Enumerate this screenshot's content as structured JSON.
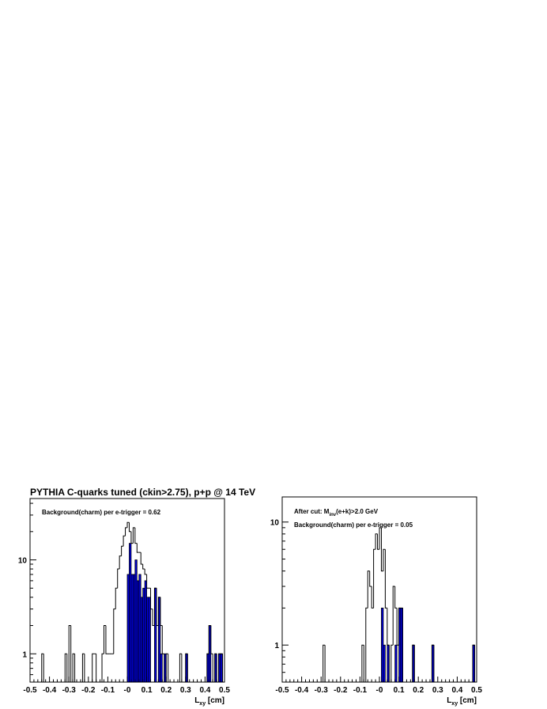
{
  "title": "PYTHIA C-quarks tuned (ckin>2.75), p+p @ 14 TeV",
  "colors": {
    "signal_fill": "#0000e0",
    "outline": "#000000"
  },
  "chart_data": [
    {
      "type": "bar",
      "scale": "log",
      "xlim": [
        -0.5,
        0.5
      ],
      "ylim": [
        0.5,
        45
      ],
      "xlabel": "L",
      "xlabel_sub": "xy",
      "xlabel_unit": " [cm]",
      "x_ticks": [
        "-0.5",
        "-0.4",
        "-0.3",
        "-0.2",
        "-0.1",
        "-0",
        "0.1",
        "0.2",
        "0.3",
        "0.4",
        "0.5"
      ],
      "y_ticks": [
        {
          "value": 1,
          "label": "1"
        },
        {
          "value": 10,
          "label": "10"
        }
      ],
      "annotation": "Background(charm) per e-trigger = 0.62",
      "bin_width": 0.01,
      "series": [
        {
          "role": "all-pairs-outline",
          "bins": [
            {
              "x": -0.44,
              "y": 1
            },
            {
              "x": -0.32,
              "y": 1
            },
            {
              "x": -0.3,
              "y": 2
            },
            {
              "x": -0.28,
              "y": 1
            },
            {
              "x": -0.23,
              "y": 1
            },
            {
              "x": -0.18,
              "y": 1
            },
            {
              "x": -0.17,
              "y": 1
            },
            {
              "x": -0.13,
              "y": 1
            },
            {
              "x": -0.12,
              "y": 2
            },
            {
              "x": -0.11,
              "y": 1
            },
            {
              "x": -0.1,
              "y": 1
            },
            {
              "x": -0.09,
              "y": 1
            },
            {
              "x": -0.08,
              "y": 1
            },
            {
              "x": -0.07,
              "y": 3
            },
            {
              "x": -0.06,
              "y": 5
            },
            {
              "x": -0.05,
              "y": 8
            },
            {
              "x": -0.04,
              "y": 11
            },
            {
              "x": -0.03,
              "y": 14
            },
            {
              "x": -0.02,
              "y": 18
            },
            {
              "x": -0.01,
              "y": 22
            },
            {
              "x": 0.0,
              "y": 25
            },
            {
              "x": 0.01,
              "y": 20
            },
            {
              "x": 0.02,
              "y": 15
            },
            {
              "x": 0.03,
              "y": 22
            },
            {
              "x": 0.04,
              "y": 15
            },
            {
              "x": 0.05,
              "y": 12
            },
            {
              "x": 0.06,
              "y": 12
            },
            {
              "x": 0.07,
              "y": 9
            },
            {
              "x": 0.08,
              "y": 8
            },
            {
              "x": 0.09,
              "y": 7
            },
            {
              "x": 0.1,
              "y": 5
            },
            {
              "x": 0.11,
              "y": 5
            },
            {
              "x": 0.12,
              "y": 3
            },
            {
              "x": 0.13,
              "y": 2
            },
            {
              "x": 0.14,
              "y": 5
            },
            {
              "x": 0.15,
              "y": 2
            },
            {
              "x": 0.16,
              "y": 4
            },
            {
              "x": 0.17,
              "y": 2
            },
            {
              "x": 0.18,
              "y": 1
            },
            {
              "x": 0.2,
              "y": 1
            },
            {
              "x": 0.27,
              "y": 1
            },
            {
              "x": 0.3,
              "y": 1
            },
            {
              "x": 0.41,
              "y": 1
            },
            {
              "x": 0.42,
              "y": 2
            },
            {
              "x": 0.43,
              "y": 1
            },
            {
              "x": 0.45,
              "y": 1
            },
            {
              "x": 0.47,
              "y": 1
            },
            {
              "x": 0.48,
              "y": 1
            }
          ]
        },
        {
          "role": "charm-filled",
          "bins": [
            {
              "x": 0.0,
              "y": 7
            },
            {
              "x": 0.01,
              "y": 15
            },
            {
              "x": 0.02,
              "y": 7
            },
            {
              "x": 0.03,
              "y": 7
            },
            {
              "x": 0.04,
              "y": 10
            },
            {
              "x": 0.05,
              "y": 6
            },
            {
              "x": 0.06,
              "y": 7
            },
            {
              "x": 0.07,
              "y": 4
            },
            {
              "x": 0.08,
              "y": 5
            },
            {
              "x": 0.09,
              "y": 6
            },
            {
              "x": 0.1,
              "y": 4
            },
            {
              "x": 0.11,
              "y": 4
            },
            {
              "x": 0.14,
              "y": 5
            },
            {
              "x": 0.16,
              "y": 4
            },
            {
              "x": 0.17,
              "y": 1
            },
            {
              "x": 0.19,
              "y": 1
            },
            {
              "x": 0.3,
              "y": 1
            },
            {
              "x": 0.41,
              "y": 1
            },
            {
              "x": 0.42,
              "y": 2
            },
            {
              "x": 0.45,
              "y": 1
            },
            {
              "x": 0.47,
              "y": 1
            },
            {
              "x": 0.48,
              "y": 1
            }
          ]
        }
      ]
    },
    {
      "type": "bar",
      "scale": "log",
      "xlim": [
        -0.5,
        0.5
      ],
      "ylim": [
        0.5,
        16
      ],
      "xlabel": "L",
      "xlabel_sub": "xy",
      "xlabel_unit": " [cm]",
      "x_ticks": [
        "-0.5",
        "-0.4",
        "-0.3",
        "-0.2",
        "-0.1",
        "-0",
        "0.1",
        "0.2",
        "0.3",
        "0.4",
        "0.5"
      ],
      "y_ticks": [
        {
          "value": 1,
          "label": "1"
        },
        {
          "value": 10,
          "label": "10"
        }
      ],
      "annotation_cut_pre": "After cut: M",
      "annotation_cut_sub": "inv",
      "annotation_cut_post": "(e+k)>2.0 GeV",
      "annotation": "Background(charm) per e-trigger = 0.05",
      "bin_width": 0.01,
      "series": [
        {
          "role": "all-pairs-outline",
          "bins": [
            {
              "x": -0.29,
              "y": 1
            },
            {
              "x": -0.09,
              "y": 1
            },
            {
              "x": -0.07,
              "y": 2
            },
            {
              "x": -0.06,
              "y": 4
            },
            {
              "x": -0.05,
              "y": 3
            },
            {
              "x": -0.04,
              "y": 2
            },
            {
              "x": -0.03,
              "y": 6
            },
            {
              "x": -0.02,
              "y": 8
            },
            {
              "x": -0.01,
              "y": 6
            },
            {
              "x": 0.0,
              "y": 9
            },
            {
              "x": 0.01,
              "y": 4
            },
            {
              "x": 0.02,
              "y": 6
            },
            {
              "x": 0.03,
              "y": 2
            },
            {
              "x": 0.04,
              "y": 1
            },
            {
              "x": 0.06,
              "y": 1
            },
            {
              "x": 0.07,
              "y": 3
            },
            {
              "x": 0.08,
              "y": 2
            },
            {
              "x": 0.09,
              "y": 1
            },
            {
              "x": 0.1,
              "y": 2
            },
            {
              "x": 0.11,
              "y": 2
            },
            {
              "x": 0.17,
              "y": 1
            },
            {
              "x": 0.27,
              "y": 1
            },
            {
              "x": 0.48,
              "y": 1
            }
          ]
        },
        {
          "role": "charm-filled",
          "bins": [
            {
              "x": 0.01,
              "y": 2
            },
            {
              "x": 0.02,
              "y": 1
            },
            {
              "x": 0.04,
              "y": 1
            },
            {
              "x": 0.08,
              "y": 1
            },
            {
              "x": 0.1,
              "y": 2
            },
            {
              "x": 0.11,
              "y": 2
            },
            {
              "x": 0.17,
              "y": 1
            },
            {
              "x": 0.27,
              "y": 1
            },
            {
              "x": 0.48,
              "y": 1
            }
          ]
        }
      ]
    }
  ]
}
